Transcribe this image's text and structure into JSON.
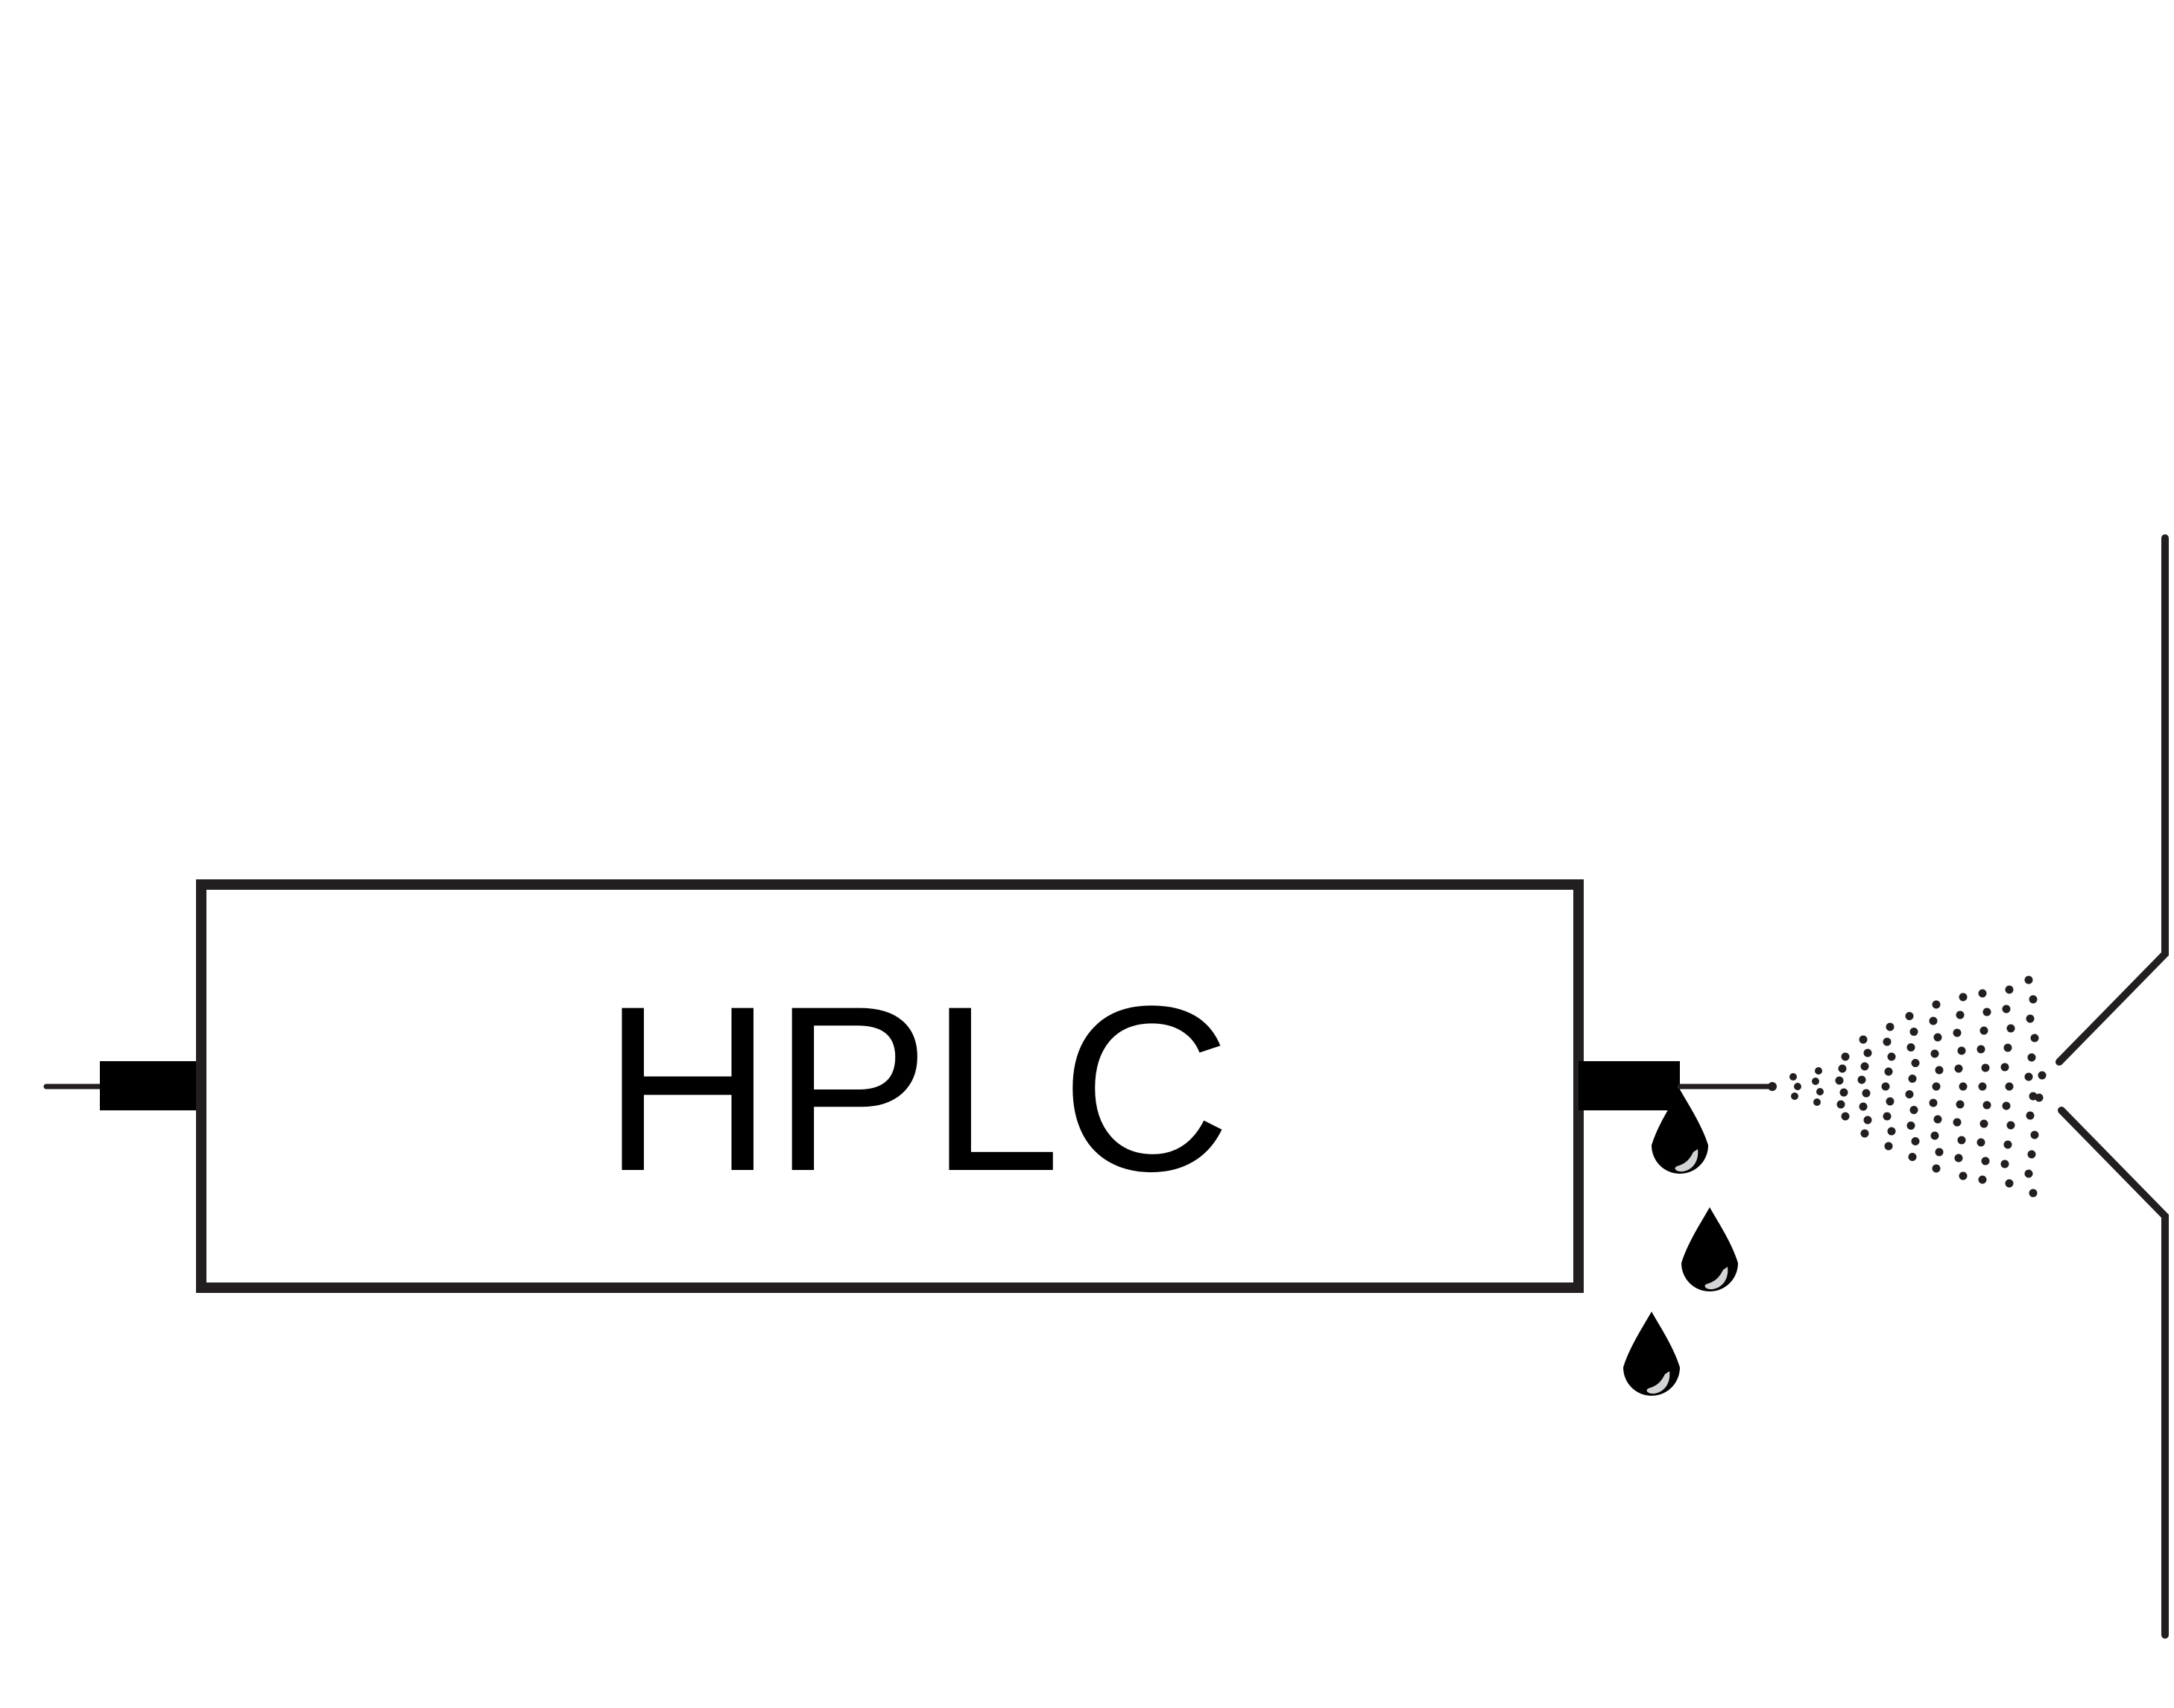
{
  "diagram": {
    "box_label": "HPLC",
    "colors": {
      "stroke": "#231f20",
      "fill": "#000000",
      "droplet_highlight": "#d1d3d4",
      "background": "#ffffff"
    },
    "elements": [
      "inlet-capillary",
      "inlet-fitting",
      "hplc-column-box",
      "outlet-fitting",
      "outlet-capillary",
      "falling-droplets",
      "electrospray-plume",
      "mass-spec-inlet-cone"
    ]
  }
}
